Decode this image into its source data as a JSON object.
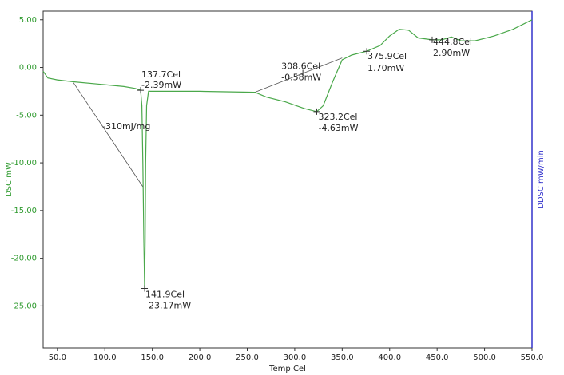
{
  "chart_data": {
    "type": "line",
    "x_label": "Temp Cel",
    "y_label": "DSC mW",
    "y2_label": "DDSC mW/min",
    "xlim": [
      35,
      550
    ],
    "ylim": [
      -29.4,
      5.9
    ],
    "xticks": [
      {
        "value": 50,
        "label": "50.0"
      },
      {
        "value": 100,
        "label": "100.0"
      },
      {
        "value": 150,
        "label": "150.0"
      },
      {
        "value": 200,
        "label": "200.0"
      },
      {
        "value": 250,
        "label": "250.0"
      },
      {
        "value": 300,
        "label": "300.0"
      },
      {
        "value": 350,
        "label": "350.0"
      },
      {
        "value": 400,
        "label": "400.0"
      },
      {
        "value": 450,
        "label": "450.0"
      },
      {
        "value": 500,
        "label": "500.0"
      },
      {
        "value": 550,
        "label": "550.0"
      }
    ],
    "yticks": [
      {
        "value": 5,
        "label": "5.00"
      },
      {
        "value": 0,
        "label": "0.00"
      },
      {
        "value": -5,
        "label": "-5.00"
      },
      {
        "value": -10,
        "label": "-10.00"
      },
      {
        "value": -15,
        "label": "-15.00"
      },
      {
        "value": -20,
        "label": "-20.00"
      },
      {
        "value": -25,
        "label": "-25.00"
      }
    ],
    "series": [
      {
        "color": "#4aa84a",
        "x": [
          35,
          40,
          50,
          67,
          100,
          120,
          132,
          137.7,
          139,
          140,
          141,
          141.9,
          142.5,
          143,
          144,
          146,
          150,
          200,
          258,
          270,
          290,
          310,
          323.2,
          330,
          340,
          350,
          360,
          375.9,
          390,
          400,
          410,
          420,
          430,
          444.8,
          455,
          465,
          475,
          490,
          510,
          530,
          550
        ],
        "values": [
          -0.4,
          -1.1,
          -1.3,
          -1.5,
          -1.8,
          -2.0,
          -2.2,
          -2.39,
          -4,
          -10,
          -18,
          -23.17,
          -18,
          -10,
          -4,
          -2.5,
          -2.5,
          -2.5,
          -2.6,
          -3.1,
          -3.6,
          -4.3,
          -4.63,
          -4.0,
          -1.5,
          0.8,
          1.3,
          1.7,
          2.3,
          3.3,
          4.0,
          3.9,
          3.1,
          2.9,
          2.9,
          3.2,
          2.8,
          2.8,
          3.3,
          4.0,
          5.0
        ]
      }
    ],
    "baselines": [
      {
        "x": [
          67,
          140
        ],
        "values": [
          -1.6,
          -12.5
        ]
      },
      {
        "x": [
          258,
          350
        ],
        "values": [
          -2.6,
          1.0
        ]
      }
    ],
    "integral_label": "-310mJ/mg",
    "annotations": [
      {
        "x": 137.7,
        "y": -2.39,
        "text": [
          "137.7Cel",
          "-2.39mW"
        ]
      },
      {
        "x": 141.9,
        "y": -23.17,
        "text": [
          "141.9Cel",
          "-23.17mW"
        ]
      },
      {
        "x": 308.6,
        "y": -0.58,
        "text": [
          "308.6Cel",
          "-0.58mW"
        ]
      },
      {
        "x": 323.2,
        "y": -4.63,
        "text": [
          "323.2Cel",
          "-4.63mW"
        ]
      },
      {
        "x": 375.9,
        "y": 1.7,
        "text": [
          "375.9Cel",
          "1.70mW"
        ]
      },
      {
        "x": 444.8,
        "y": 2.9,
        "text": [
          "444.8Cel",
          "2.90mW"
        ]
      }
    ]
  }
}
